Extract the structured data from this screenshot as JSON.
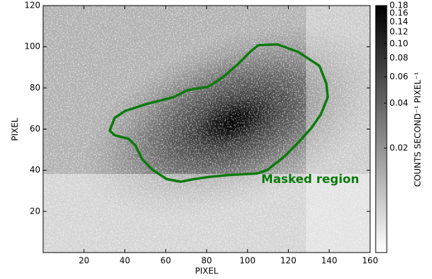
{
  "chart_data": {
    "type": "image",
    "xlabel": "PIXEL",
    "ylabel": "PIXEL",
    "xlim": [
      0,
      160
    ],
    "ylim": [
      0,
      120
    ],
    "xticks": [
      20,
      40,
      60,
      80,
      100,
      120,
      140,
      160
    ],
    "yticks": [
      20,
      40,
      60,
      80,
      100,
      120
    ],
    "colorbar": {
      "label": "COUNTS SECOND⁻¹ PIXEL⁻¹",
      "log": true,
      "lim": [
        0.004,
        0.18
      ],
      "ticks": [
        0.02,
        0.04,
        0.06,
        0.08,
        {
          "value": 0.1,
          "label": "0.10"
        },
        0.12,
        0.14,
        0.16,
        0.18
      ]
    },
    "contour": {
      "name": "Masked region",
      "color": "#0a7a0a",
      "x": [
        105.3,
        114.8,
        125,
        135.2,
        138.6,
        139.3,
        135.9,
        131.1,
        125,
        118.2,
        109.7,
        104.6,
        91,
        80.8,
        74,
        67.3,
        60.5,
        53.7,
        48.6,
        45.2,
        41.8,
        35,
        32.6,
        35,
        40.1,
        50.3,
        63.9,
        70.7,
        80.8,
        87.6,
        94.4,
        101.2,
        105.3
      ],
      "y": [
        100.8,
        101.1,
        97.4,
        90.7,
        82.2,
        75.5,
        67.1,
        60.3,
        53.6,
        46.8,
        40.1,
        38.4,
        37.7,
        36.7,
        35.7,
        34.4,
        35.7,
        40.1,
        45.2,
        51.9,
        55.3,
        57,
        59.3,
        65.4,
        68.8,
        72.1,
        75.5,
        78.9,
        80.6,
        84.9,
        90.7,
        97.4,
        100.8
      ]
    }
  }
}
